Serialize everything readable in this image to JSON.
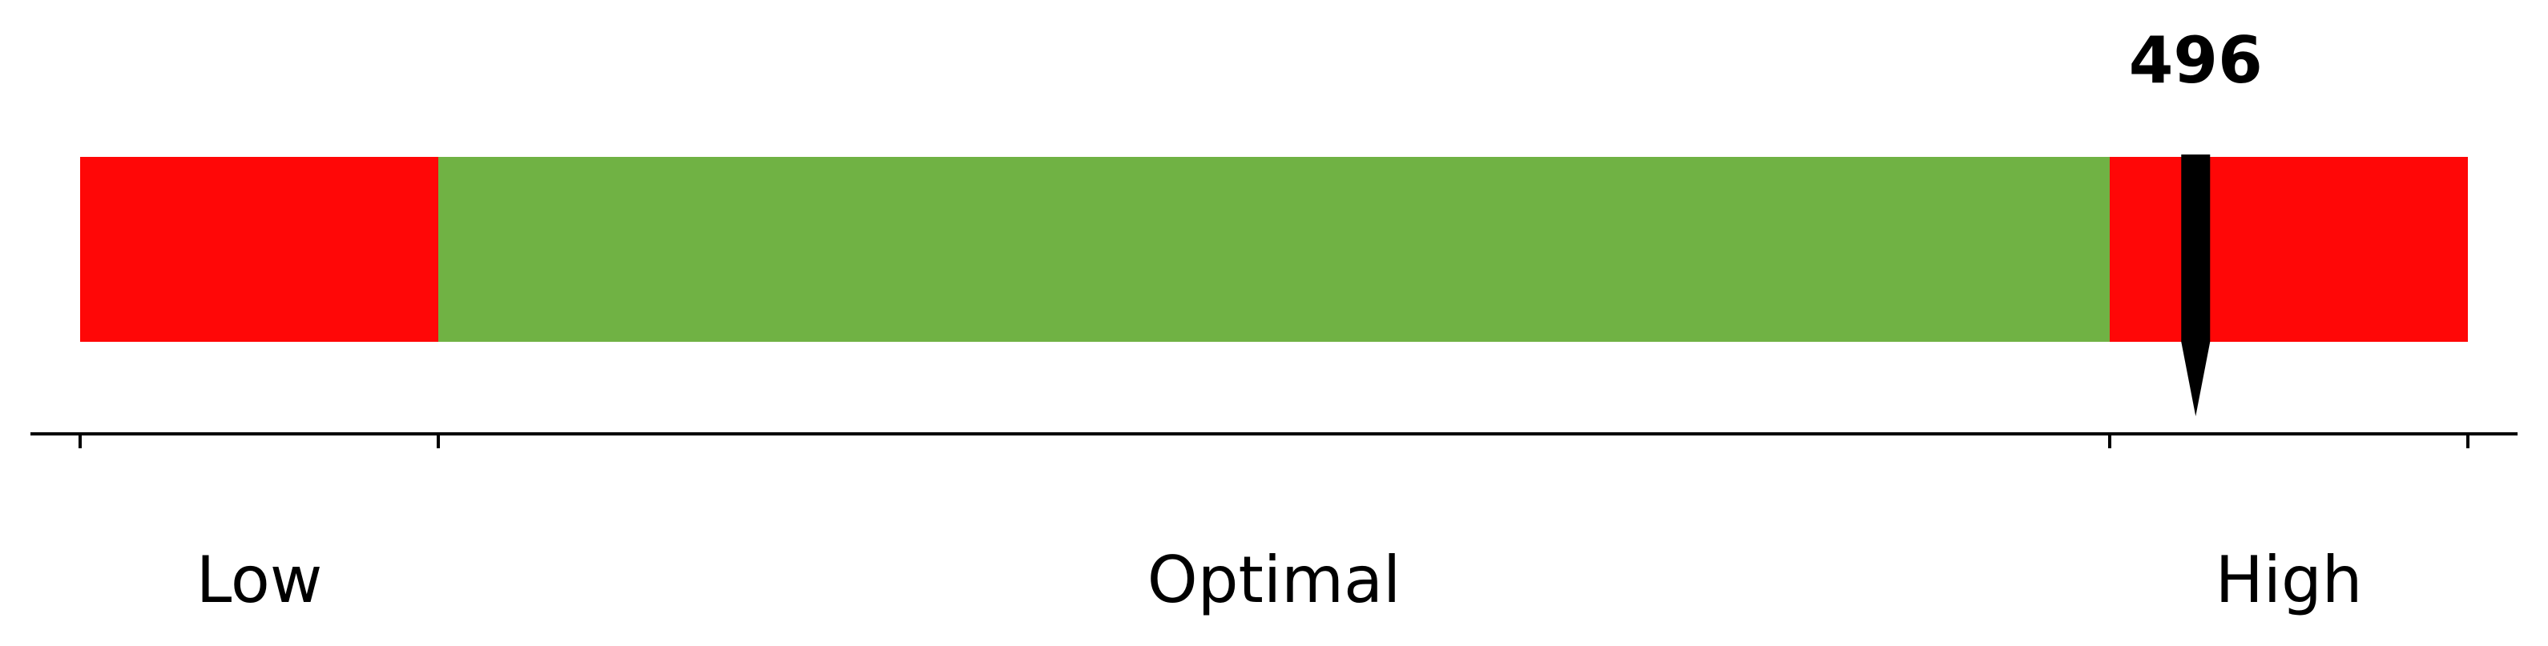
{
  "chart_data": {
    "type": "bullet-gauge",
    "value": 496,
    "value_label": "496",
    "ranges": [
      {
        "label": "Low",
        "from": 0,
        "to": 15,
        "color": "#ff0707"
      },
      {
        "label": "Optimal",
        "from": 15,
        "to": 85,
        "color": "#70b244"
      },
      {
        "label": "High",
        "from": 85,
        "to": 100,
        "color": "#ff0707"
      }
    ],
    "value_position_on_scale": 88.6,
    "pointer_color": "#000000",
    "grid": false
  }
}
